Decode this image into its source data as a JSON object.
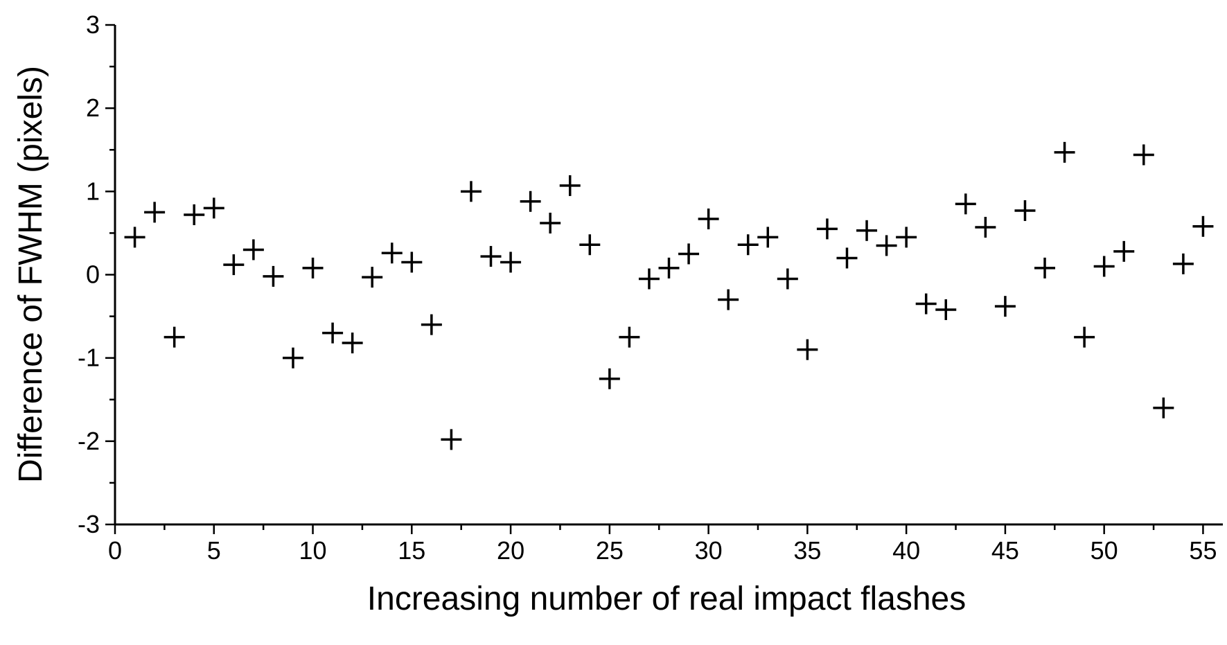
{
  "chart_data": {
    "type": "scatter",
    "title": "",
    "xlabel": "Increasing number of real impact flashes",
    "ylabel": "Difference of FWHM (pixels)",
    "xlim": [
      0,
      56
    ],
    "ylim": [
      -3,
      3
    ],
    "x_ticks": [
      "0",
      "5",
      "10",
      "15",
      "20",
      "25",
      "30",
      "35",
      "40",
      "45",
      "50",
      "55"
    ],
    "y_ticks": [
      "-3",
      "-2",
      "-1",
      "0",
      "1",
      "2",
      "3"
    ],
    "grid": false,
    "marker": "plus",
    "marker_color": "#000000",
    "series": [
      {
        "x": [
          1,
          2,
          3,
          4,
          5,
          6,
          7,
          8,
          9,
          10,
          11,
          12,
          13,
          14,
          15,
          16,
          17,
          18,
          19,
          20,
          21,
          22,
          23,
          24,
          25,
          26,
          27,
          28,
          29,
          30,
          31,
          32,
          33,
          34,
          35,
          36,
          37,
          38,
          39,
          40,
          41,
          42,
          43,
          44,
          45,
          46,
          47,
          48,
          49,
          50,
          51,
          52,
          53,
          54,
          55
        ],
        "y": [
          0.45,
          0.75,
          -0.75,
          0.72,
          0.8,
          0.12,
          0.3,
          -0.02,
          -1.0,
          0.08,
          -0.7,
          -0.82,
          -0.03,
          0.26,
          0.15,
          -0.6,
          -1.98,
          1.0,
          0.22,
          0.15,
          0.88,
          0.62,
          1.07,
          0.36,
          -1.25,
          -0.75,
          -0.05,
          0.08,
          0.25,
          0.67,
          -0.3,
          0.36,
          0.45,
          -0.05,
          -0.9,
          0.55,
          0.2,
          0.53,
          0.35,
          0.45,
          -0.35,
          -0.42,
          0.85,
          0.57,
          -0.38,
          0.77,
          0.08,
          1.47,
          -0.75,
          0.1,
          0.28,
          1.44,
          -1.6,
          0.13,
          0.58
        ]
      }
    ]
  }
}
